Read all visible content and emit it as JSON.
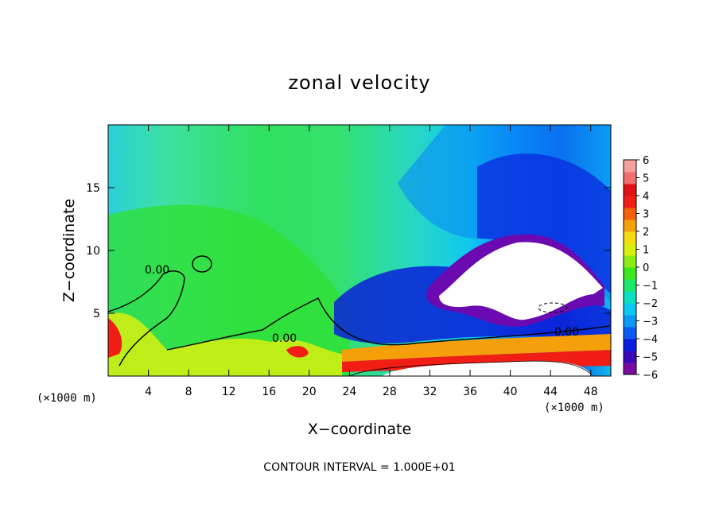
{
  "chart_data": {
    "type": "heatmap",
    "title": "zonal velocity",
    "xlabel": "X−coordinate",
    "ylabel": "Z−coordinate",
    "x_unit_left": "(×1000 m)",
    "x_unit_right": "(×1000 m)",
    "xlim": [
      0,
      50
    ],
    "ylim": [
      0,
      20
    ],
    "x_ticks": [
      4,
      8,
      12,
      16,
      20,
      24,
      28,
      32,
      36,
      40,
      44,
      48
    ],
    "y_ticks": [
      5,
      10,
      15
    ],
    "colorbar": {
      "levels": [
        "6",
        "5",
        "4",
        "3",
        "2",
        "1",
        "0",
        "−1",
        "−2",
        "−3",
        "−4",
        "−5",
        "−6"
      ],
      "min": -6,
      "max": 6,
      "colors": [
        "#7a0aa0",
        "#3a0ab8",
        "#0a1ee0",
        "#0a5af5",
        "#0a9af5",
        "#0ac8f0",
        "#0ae0c0",
        "#1ae86a",
        "#3ce81a",
        "#8cec10",
        "#d8f010",
        "#f5dc10",
        "#f5a00a",
        "#f5600a",
        "#f01e14",
        "#e01414",
        "#f07070",
        "#f7a0a0"
      ]
    },
    "contour_labels": [
      "0.00",
      "0.00",
      "0.00"
    ],
    "annotation": "CONTOUR INTERVAL = 1.000E+01"
  },
  "colors": {
    "axis": "#000000",
    "background": "#ffffff"
  }
}
